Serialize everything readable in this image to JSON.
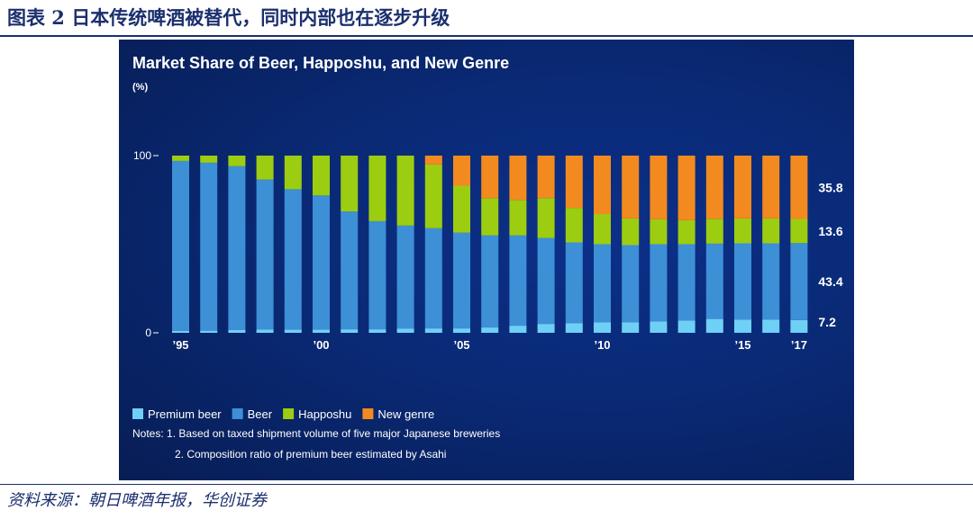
{
  "figure_title": "图表 2  日本传统啤酒被替代，同时内部也在逐步升级",
  "source": "资料来源：朝日啤酒年报，华创证券",
  "colors": {
    "premium": "#6fd0f6",
    "beer": "#3d8fd6",
    "happoshu": "#9ccd10",
    "new_genre": "#f28a1f",
    "background": "#0a2a76",
    "text": "#ffffff"
  },
  "chart_data": {
    "type": "bar",
    "stacked": true,
    "title": "Market Share of Beer, Happoshu, and New Genre",
    "ylabel": "(%)",
    "ylim": [
      0,
      100
    ],
    "yticks": [
      {
        "value": 0,
        "label": "0"
      },
      {
        "value": 100,
        "label": "100"
      }
    ],
    "categories": [
      "1995",
      "1996",
      "1997",
      "1998",
      "1999",
      "2000",
      "2001",
      "2002",
      "2003",
      "2004",
      "2005",
      "2006",
      "2007",
      "2008",
      "2009",
      "2010",
      "2011",
      "2012",
      "2013",
      "2014",
      "2015",
      "2016",
      "2017"
    ],
    "xtick_labels": [
      {
        "index": 0,
        "label": "’95"
      },
      {
        "index": 5,
        "label": "’00"
      },
      {
        "index": 10,
        "label": "’05"
      },
      {
        "index": 15,
        "label": "’10"
      },
      {
        "index": 20,
        "label": "’15"
      },
      {
        "index": 22,
        "label": "’17"
      }
    ],
    "series": [
      {
        "name": "Premium beer",
        "key": "premium",
        "values": [
          1.0,
          1.2,
          1.5,
          1.8,
          1.8,
          1.8,
          2.0,
          2.0,
          2.3,
          2.5,
          2.5,
          3.0,
          4.0,
          5.0,
          5.5,
          6.0,
          6.0,
          6.5,
          7.0,
          7.8,
          7.5,
          7.5,
          7.2
        ]
      },
      {
        "name": "Beer",
        "key": "beer",
        "values": [
          96.0,
          94.8,
          92.5,
          84.7,
          79.2,
          75.7,
          66.5,
          61.0,
          58.2,
          56.5,
          54.0,
          52.0,
          51.0,
          48.5,
          45.5,
          44.0,
          43.5,
          43.5,
          43.0,
          42.5,
          43.0,
          43.0,
          43.4
        ]
      },
      {
        "name": "Happoshu",
        "key": "happoshu",
        "values": [
          3.0,
          4.0,
          6.0,
          13.5,
          19.0,
          22.5,
          31.5,
          37.0,
          39.5,
          36.0,
          26.5,
          21.0,
          20.0,
          22.5,
          19.5,
          17.0,
          15.0,
          14.0,
          13.5,
          14.0,
          14.0,
          14.0,
          13.6
        ]
      },
      {
        "name": "New genre",
        "key": "new_genre",
        "values": [
          0,
          0,
          0,
          0,
          0,
          0,
          0,
          0,
          0,
          5.0,
          17.0,
          24.0,
          25.0,
          24.0,
          29.5,
          33.0,
          35.5,
          36.0,
          36.5,
          35.7,
          35.5,
          35.5,
          35.8
        ]
      }
    ],
    "end_labels": [
      {
        "series": "new_genre",
        "label": "35.8"
      },
      {
        "series": "happoshu",
        "label": "13.6"
      },
      {
        "series": "beer",
        "label": "43.4"
      },
      {
        "series": "premium",
        "label": "7.2"
      }
    ],
    "legend": {
      "placement": "bottom-left",
      "items": [
        {
          "key": "premium",
          "label": "Premium beer"
        },
        {
          "key": "beer",
          "label": "Beer"
        },
        {
          "key": "happoshu",
          "label": "Happoshu"
        },
        {
          "key": "new_genre",
          "label": "New genre"
        }
      ]
    },
    "notes": [
      "Notes: 1. Based on taxed shipment volume of five major Japanese breweries",
      "2. Composition ratio of premium beer estimated by Asahi"
    ]
  }
}
